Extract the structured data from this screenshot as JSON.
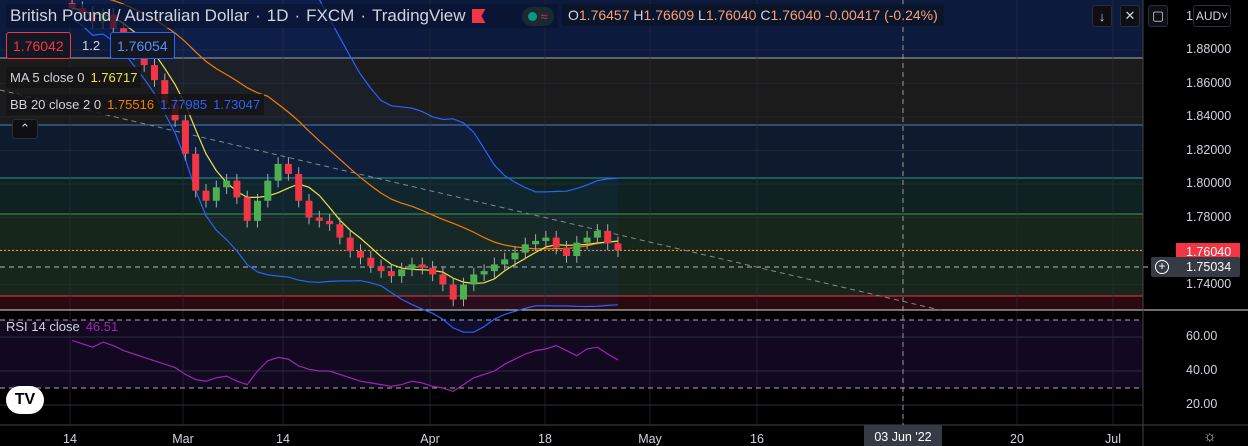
{
  "header": {
    "title": "British Pound / Australian Dollar",
    "interval": "1D",
    "exchange": "FXCM",
    "source": "TradingView",
    "ohlc": {
      "o_label": "O",
      "o": "1.76457",
      "h_label": "H",
      "h": "1.76609",
      "l_label": "L",
      "l": "1.76040",
      "c_label": "C",
      "c": "1.76040",
      "change": "-0.00417 (-0.24%)"
    }
  },
  "trade": {
    "sell": "1.76042",
    "spread": "1.2",
    "buy": "1.76054"
  },
  "indicators": {
    "ma_label": "MA 5 close 0",
    "ma_value": "1.76717",
    "bb_label": "BB 20 close 2 0",
    "bb_basis": "1.75516",
    "bb_upper": "1.77985",
    "bb_lower": "1.73047",
    "rsi_label": "RSI 14 close",
    "rsi_value": "46.51"
  },
  "currency": "AUD",
  "colors": {
    "up": "#4caf50",
    "down": "#f23645",
    "ma": "#f0e442",
    "bb_basis": "#f57c00",
    "bb_band": "#2962ff",
    "rsi": "#9c27b0"
  },
  "chart_data": {
    "type": "candlestick",
    "title": "British Pound / Australian Dollar 1D",
    "price_ticks": [
      "1.88000",
      "1.86000",
      "1.84000",
      "1.82000",
      "1.80000",
      "1.78000",
      "1.76000",
      "1.74000"
    ],
    "price_ticks_shown": [
      "1.88000",
      "1.86000",
      "1.84000",
      "1.82000",
      "1.80000",
      "1.78000",
      "1.74000"
    ],
    "last_price": "1.76040",
    "crosshair_price": "1.75034",
    "partial_top_tick": "1",
    "rsi_ticks": [
      "60.00",
      "40.00",
      "20.00"
    ],
    "time_ticks": [
      "14",
      "Mar",
      "14",
      "Apr",
      "18",
      "May",
      "16",
      "20",
      "Jul"
    ],
    "crosshair_date": "03 Jun '22",
    "ylim": [
      1.727,
      1.91
    ],
    "closes": [
      1.905,
      1.902,
      1.897,
      1.901,
      1.893,
      1.886,
      1.878,
      1.871,
      1.862,
      1.848,
      1.838,
      1.818,
      1.796,
      1.79,
      1.798,
      1.802,
      1.792,
      1.778,
      1.79,
      1.802,
      1.812,
      1.806,
      1.79,
      1.78,
      1.778,
      1.776,
      1.768,
      1.76,
      1.756,
      1.751,
      1.748,
      1.745,
      1.749,
      1.752,
      1.75,
      1.746,
      1.74,
      1.731,
      1.74,
      1.746,
      1.748,
      1.752,
      1.755,
      1.759,
      1.764,
      1.766,
      1.768,
      1.762,
      1.757,
      1.765,
      1.768,
      1.772,
      1.76457,
      1.7604
    ],
    "rsi": [
      58,
      56,
      54,
      57,
      55,
      52,
      50,
      48,
      46,
      44,
      42,
      38,
      35,
      34,
      36,
      37,
      34,
      32,
      40,
      46,
      48,
      47,
      43,
      41,
      40,
      40,
      38,
      36,
      34,
      33,
      32,
      31,
      32,
      34,
      33,
      31,
      30,
      28,
      32,
      36,
      38,
      40,
      44,
      47,
      50,
      52,
      53,
      55,
      52,
      49,
      53,
      54,
      50,
      46.51
    ]
  }
}
